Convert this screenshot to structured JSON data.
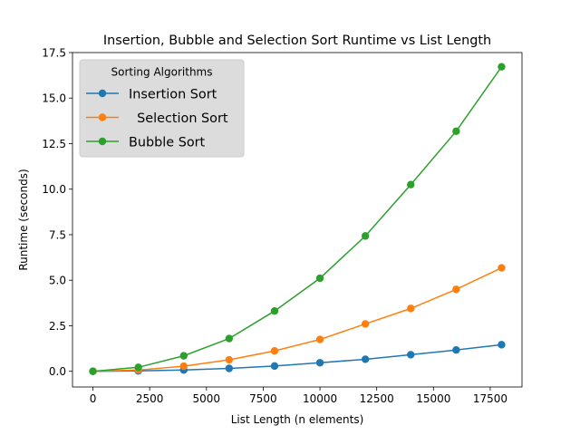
{
  "chart_data": {
    "type": "line",
    "title": "Insertion, Bubble and Selection Sort Runtime vs List Length",
    "xlabel": "List Length (n elements)",
    "ylabel": "Runtime (seconds)",
    "xlim": [
      -900,
      18900
    ],
    "ylim": [
      -0.86,
      17.5
    ],
    "xticks": [
      0,
      2500,
      5000,
      7500,
      10000,
      12500,
      15000,
      17500
    ],
    "xtick_labels": [
      "0",
      "2500",
      "5000",
      "7500",
      "10000",
      "12500",
      "15000",
      "17500"
    ],
    "yticks": [
      0.0,
      2.5,
      5.0,
      7.5,
      10.0,
      12.5,
      15.0,
      17.5
    ],
    "ytick_labels": [
      "0.0",
      "2.5",
      "5.0",
      "7.5",
      "10.0",
      "12.5",
      "15.0",
      "17.5"
    ],
    "grid": false,
    "legend": {
      "title": "Sorting Algorithms",
      "placement": "top-left"
    },
    "x": [
      0,
      2000,
      4000,
      6000,
      8000,
      10000,
      12000,
      14000,
      16000,
      18000
    ],
    "series": [
      {
        "name": "Insertion Sort",
        "color": "#1f77b4",
        "values": [
          0.0,
          0.02,
          0.07,
          0.16,
          0.29,
          0.47,
          0.66,
          0.91,
          1.17,
          1.46
        ]
      },
      {
        "name": "  Selection Sort",
        "color": "#ff7f0e",
        "values": [
          0.0,
          0.07,
          0.28,
          0.63,
          1.12,
          1.75,
          2.6,
          3.45,
          4.5,
          5.68
        ]
      },
      {
        "name": "Bubble Sort",
        "color": "#2ca02c",
        "values": [
          0.0,
          0.22,
          0.85,
          1.8,
          3.31,
          5.11,
          7.43,
          10.25,
          13.18,
          16.72
        ]
      }
    ]
  }
}
